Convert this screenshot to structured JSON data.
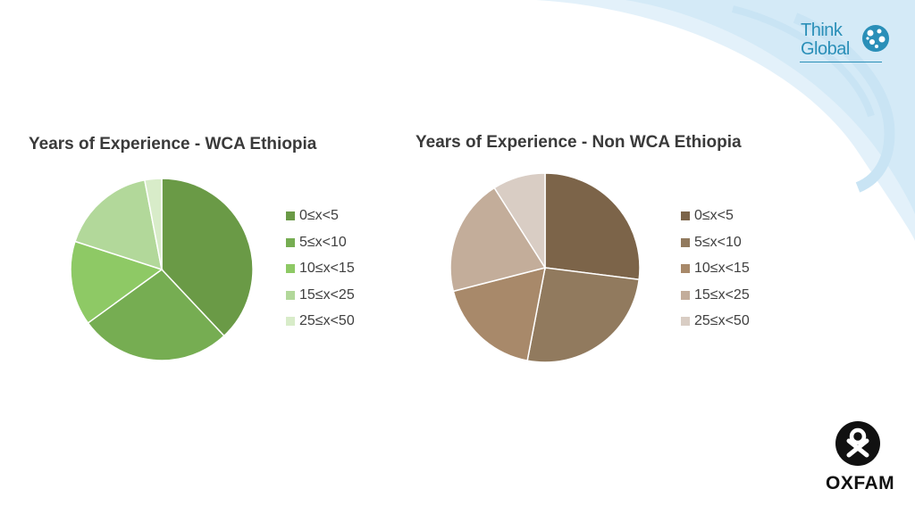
{
  "brand": {
    "line1": "Think",
    "line2": "Global"
  },
  "footer_logo": {
    "text": "OXFAM"
  },
  "colors": {
    "swirl": "#e3f1fa",
    "swirl_ring": "#c9e4f4",
    "brand": "#2a8fb8"
  },
  "chart_data": [
    {
      "type": "pie",
      "title": "Years of Experience - WCA Ethiopia",
      "legend_position": "right",
      "categories": [
        "0≤x<5",
        "5≤x<10",
        "10≤x<15",
        "15≤x<25",
        "25≤x<50"
      ],
      "values": [
        38,
        27,
        15,
        17,
        3
      ],
      "colors": [
        "#6a9a46",
        "#76ad52",
        "#8ec965",
        "#b2d89a",
        "#d8ecc9"
      ]
    },
    {
      "type": "pie",
      "title": "Years of Experience - Non WCA Ethiopia",
      "legend_position": "right",
      "categories": [
        "0≤x<5",
        "5≤x<10",
        "10≤x<15",
        "15≤x<25",
        "25≤x<50"
      ],
      "values": [
        27,
        26,
        18,
        20,
        9
      ],
      "colors": [
        "#7c6449",
        "#917a5e",
        "#a8896a",
        "#c3ad9a",
        "#d9cdc4"
      ]
    }
  ]
}
